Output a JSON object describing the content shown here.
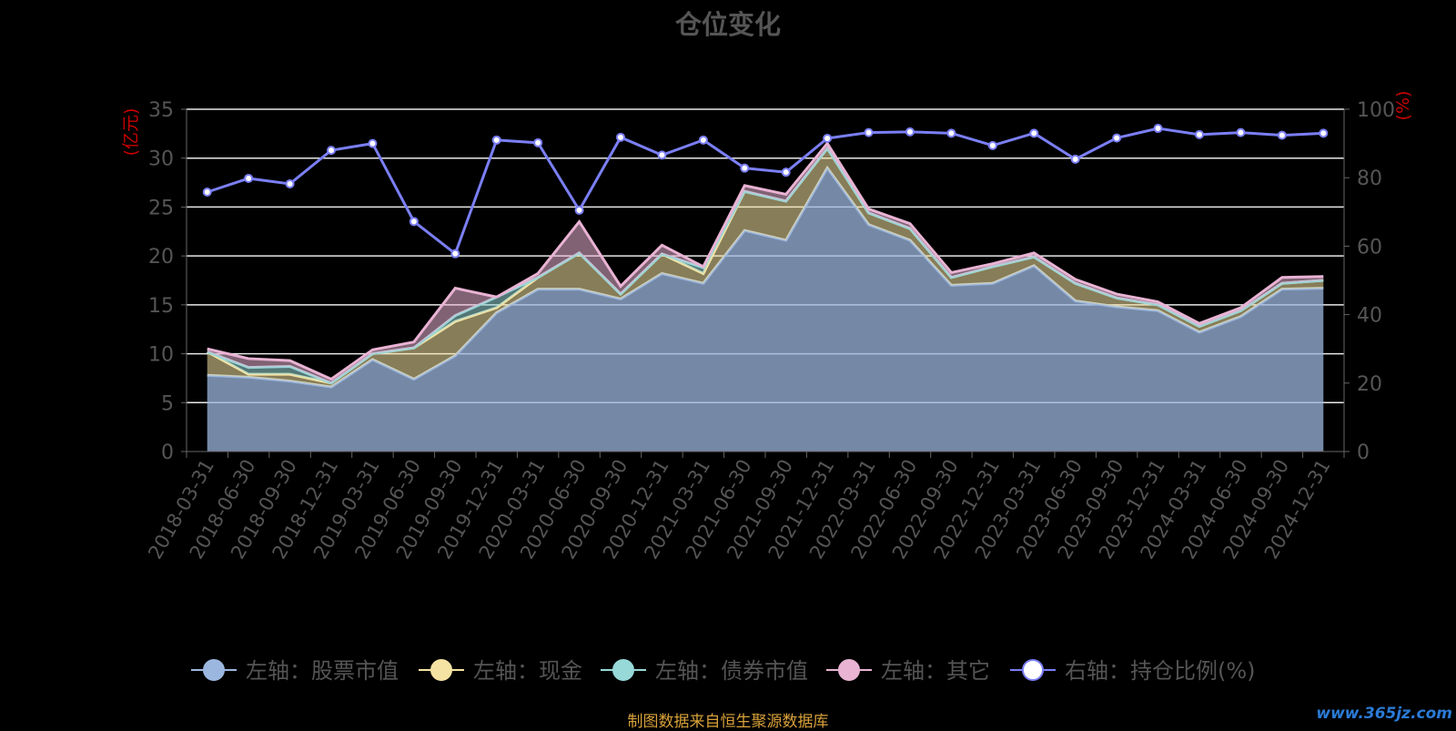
{
  "chart_data": {
    "type": "area",
    "title": "仓位变化",
    "footer": "制图数据来自恒生聚源数据库",
    "watermark": "www.365jz.com",
    "left_unit": "(亿元)",
    "right_unit": "(%)",
    "left_ylim": [
      0,
      35
    ],
    "left_ticks": [
      0,
      5,
      10,
      15,
      20,
      25,
      30,
      35
    ],
    "right_ylim": [
      0,
      100
    ],
    "right_ticks": [
      0,
      20,
      40,
      60,
      80,
      100
    ],
    "grid": true,
    "legend_position": "bottom",
    "categories": [
      "2018-03-31",
      "2018-06-30",
      "2018-09-30",
      "2018-12-31",
      "2019-03-31",
      "2019-06-30",
      "2019-09-30",
      "2019-12-31",
      "2020-03-31",
      "2020-06-30",
      "2020-09-30",
      "2020-12-31",
      "2021-03-31",
      "2021-06-30",
      "2021-09-30",
      "2021-12-31",
      "2022-03-31",
      "2022-06-30",
      "2022-09-30",
      "2022-12-31",
      "2023-03-31",
      "2023-06-30",
      "2023-09-30",
      "2023-12-31",
      "2024-03-31",
      "2024-06-30",
      "2024-09-30",
      "2024-12-31"
    ],
    "stacked_series": [
      {
        "name": "左轴：股票市值",
        "color": "#9cb7df",
        "values": [
          7.8,
          7.6,
          7.2,
          6.6,
          9.4,
          7.4,
          9.8,
          14.2,
          16.6,
          16.6,
          15.6,
          18.2,
          17.2,
          22.6,
          21.6,
          29.0,
          23.2,
          21.6,
          17.0,
          17.2,
          19.0,
          15.4,
          14.8,
          14.4,
          12.2,
          13.8,
          16.6,
          16.7
        ]
      },
      {
        "name": "左轴：现金",
        "color": "#f5e3a3",
        "values": [
          2.4,
          0.3,
          0.7,
          0.4,
          0.6,
          3.2,
          3.5,
          0.5,
          1.2,
          3.7,
          0.5,
          2.0,
          1.0,
          4.0,
          4.0,
          2.0,
          1.2,
          1.2,
          0.8,
          1.7,
          0.9,
          1.8,
          0.9,
          0.6,
          0.6,
          0.6,
          0.6,
          0.8
        ]
      },
      {
        "name": "左轴：债券市值",
        "color": "#97d8d8",
        "values": [
          0,
          0.7,
          0.8,
          0,
          0,
          0,
          0.6,
          1.1,
          0,
          0,
          0,
          0,
          0.6,
          0,
          0,
          0,
          0,
          0,
          0,
          0,
          0,
          0,
          0,
          0,
          0,
          0,
          0,
          0
        ]
      },
      {
        "name": "左轴：其它",
        "color": "#e9b3d4",
        "values": [
          0.3,
          0.9,
          0.6,
          0.4,
          0.4,
          0.6,
          2.8,
          0,
          0.4,
          3.2,
          0.8,
          0.9,
          0.1,
          0.6,
          0.7,
          0.5,
          0.4,
          0.5,
          0.5,
          0.3,
          0.4,
          0.4,
          0.4,
          0.3,
          0.3,
          0.3,
          0.6,
          0.4
        ]
      }
    ],
    "line_series": {
      "name": "右轴：持仓比例(%)",
      "color": "#7b7ff5",
      "values": [
        75.8,
        79.8,
        78.2,
        88.0,
        90.0,
        67.2,
        57.8,
        91.0,
        90.2,
        70.5,
        91.8,
        86.6,
        91.0,
        82.8,
        81.6,
        91.5,
        93.2,
        93.4,
        93.0,
        89.4,
        93.0,
        85.4,
        91.6,
        94.4,
        92.6,
        93.2,
        92.4,
        93.0
      ]
    }
  }
}
